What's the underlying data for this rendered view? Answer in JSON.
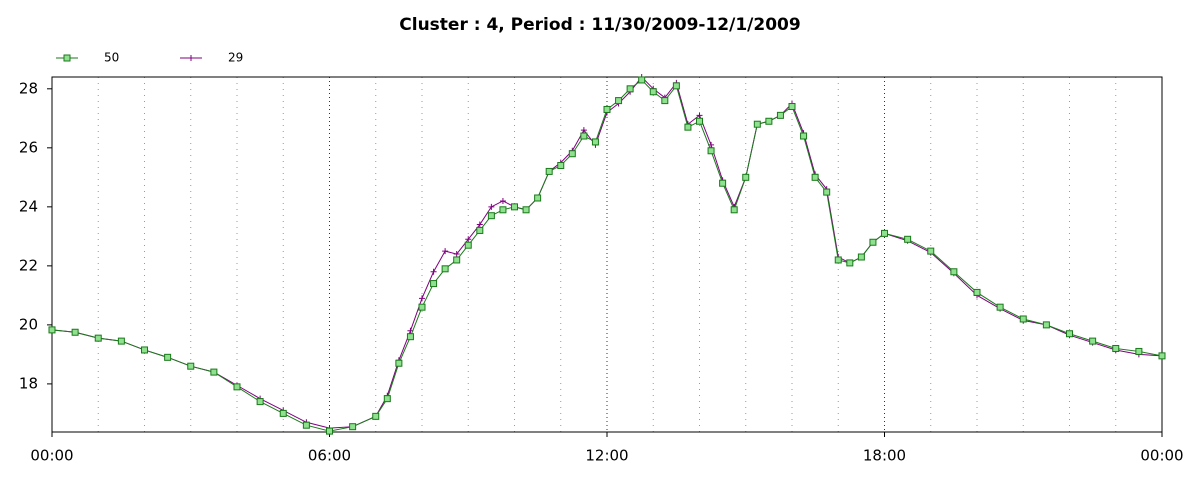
{
  "chart_data": {
    "type": "line",
    "title": "Cluster : 4, Period : 11/30/2009-12/1/2009",
    "x": [
      0,
      0.5,
      1,
      1.5,
      2,
      2.5,
      3,
      3.5,
      4,
      4.5,
      5,
      5.5,
      6,
      6.5,
      7,
      7.25,
      7.5,
      7.75,
      8,
      8.25,
      8.5,
      8.75,
      9,
      9.25,
      9.5,
      9.75,
      10,
      10.25,
      10.5,
      10.75,
      11,
      11.25,
      11.5,
      11.75,
      12,
      12.25,
      12.5,
      12.75,
      13,
      13.25,
      13.5,
      13.75,
      14,
      14.25,
      14.5,
      14.75,
      15,
      15.25,
      15.5,
      15.75,
      16,
      16.25,
      16.5,
      16.75,
      17,
      17.25,
      17.5,
      17.75,
      18,
      18.5,
      19,
      19.5,
      20,
      20.5,
      21,
      21.5,
      22,
      22.5,
      23,
      23.5,
      24
    ],
    "series": [
      {
        "name": "50",
        "color": "#1a7a1a",
        "marker": "square",
        "marker_fill": "#8fe08f",
        "values": [
          19.83,
          19.75,
          19.55,
          19.45,
          19.15,
          18.9,
          18.6,
          18.4,
          17.9,
          17.4,
          17.0,
          16.6,
          16.4,
          16.55,
          16.9,
          17.5,
          18.7,
          19.6,
          20.6,
          21.4,
          21.9,
          22.2,
          22.7,
          23.2,
          23.7,
          23.9,
          24.0,
          23.9,
          24.3,
          25.2,
          25.4,
          25.8,
          26.4,
          26.2,
          27.3,
          27.6,
          28.0,
          28.3,
          27.9,
          27.6,
          28.1,
          26.7,
          26.9,
          25.9,
          24.8,
          23.9,
          25.0,
          26.8,
          26.9,
          27.1,
          27.4,
          26.4,
          25.0,
          24.5,
          22.2,
          22.1,
          22.3,
          22.8,
          23.1,
          22.9,
          22.5,
          21.8,
          21.1,
          20.6,
          20.2,
          20.0,
          19.7,
          19.45,
          19.2,
          19.1,
          18.95
        ]
      },
      {
        "name": "29",
        "color": "#800080",
        "marker": "plus",
        "values": [
          19.83,
          19.75,
          19.55,
          19.45,
          19.15,
          18.9,
          18.6,
          18.4,
          17.95,
          17.5,
          17.1,
          16.7,
          16.5,
          16.55,
          16.9,
          17.6,
          18.8,
          19.8,
          20.9,
          21.8,
          22.5,
          22.4,
          22.9,
          23.4,
          24.0,
          24.2,
          24.0,
          23.9,
          24.3,
          25.2,
          25.5,
          25.9,
          26.6,
          26.1,
          27.2,
          27.5,
          27.9,
          28.4,
          28.0,
          27.7,
          28.2,
          26.8,
          27.1,
          26.1,
          24.9,
          24.0,
          25.0,
          26.8,
          26.9,
          27.1,
          27.5,
          26.5,
          25.1,
          24.6,
          22.3,
          22.1,
          22.3,
          22.8,
          23.1,
          22.85,
          22.45,
          21.75,
          21.0,
          20.55,
          20.15,
          20.0,
          19.65,
          19.4,
          19.15,
          19.0,
          18.95
        ]
      }
    ],
    "xlim": [
      0,
      24
    ],
    "xticks": [
      {
        "value": 0,
        "label": "00:00"
      },
      {
        "value": 6,
        "label": "06:00"
      },
      {
        "value": 12,
        "label": "12:00"
      },
      {
        "value": 18,
        "label": "18:00"
      },
      {
        "value": 24,
        "label": "00:00"
      }
    ],
    "xminorticks": [
      1,
      2,
      3,
      4,
      5,
      7,
      8,
      9,
      10,
      11,
      13,
      14,
      15,
      16,
      17,
      19,
      20,
      21,
      22,
      23
    ],
    "ylim": [
      16.37,
      28.4
    ],
    "yticks": [
      18,
      20,
      22,
      24,
      26,
      28
    ],
    "grid": true,
    "legend": "top-left"
  }
}
